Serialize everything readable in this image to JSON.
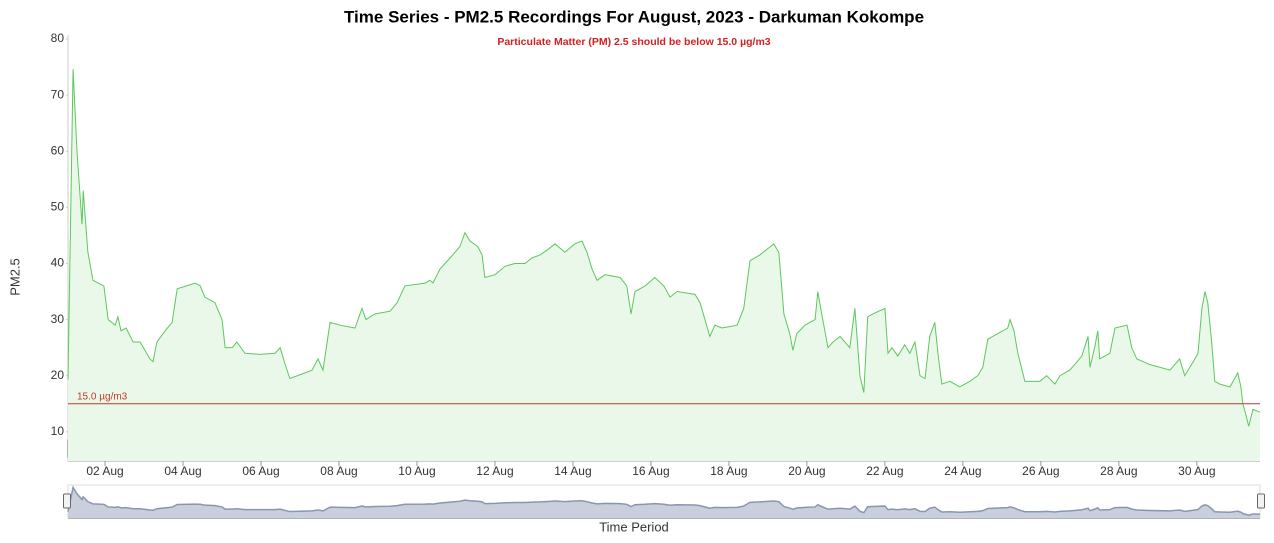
{
  "chart_data": {
    "type": "line",
    "title": "Time Series - PM2.5 Recordings For August, 2023 - Darkuman Kokompe",
    "subtitle": "Particulate Matter (PM) 2.5 should be below 15.0 µg/m3",
    "y_label": "PM2.5",
    "x_label": "Time Period",
    "range_input": "30",
    "color": "#5cc85c",
    "fill": "#eaf8ea",
    "reference_line": {
      "value": 15,
      "label": "15.0 µg/m3",
      "color": "#c0392b"
    },
    "xlim": [
      1.05,
      31.62
    ],
    "ylim": [
      4.8,
      80
    ],
    "yticks": [
      10,
      20,
      30,
      40,
      50,
      60,
      70,
      80
    ],
    "xticks": [
      {
        "value": 2,
        "label": "02 Aug"
      },
      {
        "value": 4,
        "label": "04 Aug"
      },
      {
        "value": 6,
        "label": "06 Aug"
      },
      {
        "value": 8,
        "label": "08 Aug"
      },
      {
        "value": 10,
        "label": "10 Aug"
      },
      {
        "value": 12,
        "label": "12 Aug"
      },
      {
        "value": 14,
        "label": "14 Aug"
      },
      {
        "value": 16,
        "label": "16 Aug"
      },
      {
        "value": 18,
        "label": "18 Aug"
      },
      {
        "value": 20,
        "label": "20 Aug"
      },
      {
        "value": 22,
        "label": "22 Aug"
      },
      {
        "value": 24,
        "label": "24 Aug"
      },
      {
        "value": 26,
        "label": "26 Aug"
      },
      {
        "value": 28,
        "label": "28 Aug"
      },
      {
        "value": 30,
        "label": "30 Aug"
      }
    ],
    "x": [
      1.05,
      1.18,
      1.28,
      1.36,
      1.41,
      1.44,
      1.56,
      1.69,
      1.97,
      2.08,
      2.26,
      2.33,
      2.41,
      2.54,
      2.72,
      2.9,
      3.15,
      3.23,
      3.33,
      3.54,
      3.72,
      3.85,
      4.31,
      4.44,
      4.56,
      4.82,
      5.0,
      5.08,
      5.26,
      5.38,
      5.59,
      5.97,
      6.36,
      6.49,
      6.62,
      6.74,
      7.13,
      7.31,
      7.46,
      7.59,
      7.77,
      8.03,
      8.41,
      8.59,
      8.69,
      8.92,
      9.31,
      9.49,
      9.69,
      10.21,
      10.33,
      10.41,
      10.59,
      10.85,
      11.1,
      11.23,
      11.36,
      11.56,
      11.67,
      11.74,
      12.0,
      12.26,
      12.51,
      12.77,
      12.95,
      13.15,
      13.36,
      13.54,
      13.79,
      14.05,
      14.23,
      14.36,
      14.49,
      14.62,
      14.82,
      15.21,
      15.38,
      15.49,
      15.59,
      15.85,
      16.1,
      16.33,
      16.49,
      16.67,
      17.13,
      17.26,
      17.51,
      17.64,
      17.82,
      18.21,
      18.38,
      18.54,
      18.79,
      19.15,
      19.28,
      19.41,
      19.56,
      19.64,
      19.74,
      19.95,
      20.21,
      20.28,
      20.38,
      20.54,
      20.67,
      20.85,
      21.1,
      21.23,
      21.36,
      21.46,
      21.56,
      21.69,
      22.0,
      22.08,
      22.18,
      22.33,
      22.51,
      22.64,
      22.77,
      22.9,
      23.03,
      23.15,
      23.28,
      23.36,
      23.46,
      23.67,
      23.92,
      24.18,
      24.38,
      24.51,
      24.64,
      25.15,
      25.21,
      25.31,
      25.41,
      25.59,
      25.97,
      26.15,
      26.36,
      26.49,
      26.74,
      26.87,
      27.05,
      27.21,
      27.26,
      27.38,
      27.46,
      27.51,
      27.77,
      27.9,
      28.21,
      28.33,
      28.46,
      28.79,
      29.31,
      29.56,
      29.69,
      29.95,
      30.03,
      30.13,
      30.21,
      30.28,
      30.38,
      30.46,
      30.59,
      30.85,
      31.05,
      31.13,
      31.18,
      31.26,
      31.33,
      31.44,
      31.62
    ],
    "values": [
      19.3,
      74.6,
      60,
      52,
      47,
      53,
      42,
      37,
      36,
      30,
      29,
      30.5,
      28,
      28.5,
      26,
      26,
      23,
      22.5,
      26,
      28,
      29.5,
      35.5,
      36.5,
      36,
      34,
      33,
      30,
      25,
      25,
      26,
      24,
      23.8,
      24,
      25,
      22,
      19.5,
      20.5,
      21,
      23,
      21,
      29.5,
      29,
      28.5,
      32,
      30,
      31,
      31.5,
      33,
      36,
      36.5,
      37,
      36.5,
      39,
      41,
      43,
      45.5,
      44,
      43,
      41.5,
      37.5,
      38,
      39.5,
      40,
      40,
      41,
      41.5,
      42.5,
      43.5,
      42,
      43.5,
      44,
      42,
      39,
      37,
      38,
      37.5,
      36,
      31,
      35,
      36,
      37.5,
      36,
      34,
      35,
      34.5,
      33,
      27,
      29,
      28.5,
      29,
      32,
      40.5,
      41.5,
      43.5,
      42,
      31,
      27.5,
      24.5,
      27.5,
      29,
      30,
      35,
      31,
      25,
      26,
      27,
      25,
      32,
      20,
      17,
      30.5,
      31,
      32,
      24,
      25,
      23.5,
      25.5,
      24,
      26,
      20,
      19.5,
      27,
      29.5,
      24,
      18.5,
      19,
      18,
      19,
      20,
      21.5,
      26.5,
      28.5,
      30,
      28,
      24,
      19,
      19,
      20,
      18.5,
      20,
      21,
      22,
      23.5,
      27,
      21.5,
      25,
      28,
      23,
      24,
      28.5,
      29,
      25,
      23,
      22,
      21,
      23,
      20,
      23,
      24,
      32,
      35,
      33,
      26,
      19,
      18.5,
      18,
      20.5,
      18,
      15,
      13,
      11,
      14,
      13.5
    ]
  }
}
